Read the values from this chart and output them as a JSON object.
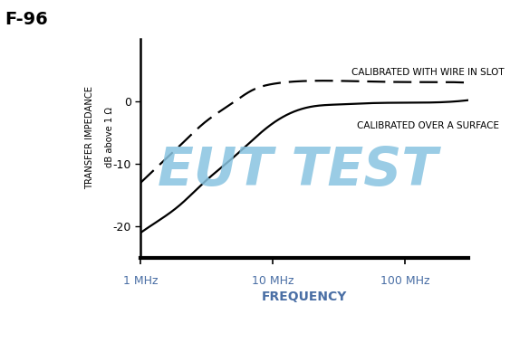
{
  "title": "F-96",
  "xlabel": "FREQUENCY",
  "ylabel_line1": "TRANSFER IMPEDANCE",
  "ylabel_line2": "dB above 1 Ω",
  "label_wire": "CALIBRATED WITH WIRE IN SLOT",
  "label_surface": "CALIBRATED OVER A SURFACE",
  "watermark": "EUT TEST",
  "watermark_color": "#89c4e1",
  "background_color": "#ffffff",
  "curve_color": "#000000",
  "freq_label_color": "#4a6fa5",
  "xlabel_color": "#4a6fa5",
  "ylim": [
    -25,
    10
  ],
  "yticks": [
    -20,
    -10,
    0
  ],
  "title_fontsize": 14,
  "tick_label_fontsize": 9,
  "axis_label_fontsize": 10,
  "curve_label_fontsize": 7.5,
  "solid_x": [
    1,
    1.5,
    2,
    3,
    5,
    7,
    10,
    15,
    20,
    30,
    50,
    100,
    200,
    300
  ],
  "solid_y": [
    -21,
    -18.5,
    -16.5,
    -13.0,
    -9.0,
    -6.2,
    -3.5,
    -1.5,
    -0.8,
    -0.5,
    -0.3,
    -0.2,
    -0.1,
    0.2
  ],
  "dashed_x": [
    1,
    1.5,
    2,
    3,
    5,
    7,
    10,
    15,
    20,
    30,
    50,
    100,
    200,
    300
  ],
  "dashed_y": [
    -13,
    -9.5,
    -7.0,
    -3.5,
    -0.2,
    1.8,
    2.8,
    3.2,
    3.3,
    3.3,
    3.2,
    3.1,
    3.1,
    3.0
  ]
}
